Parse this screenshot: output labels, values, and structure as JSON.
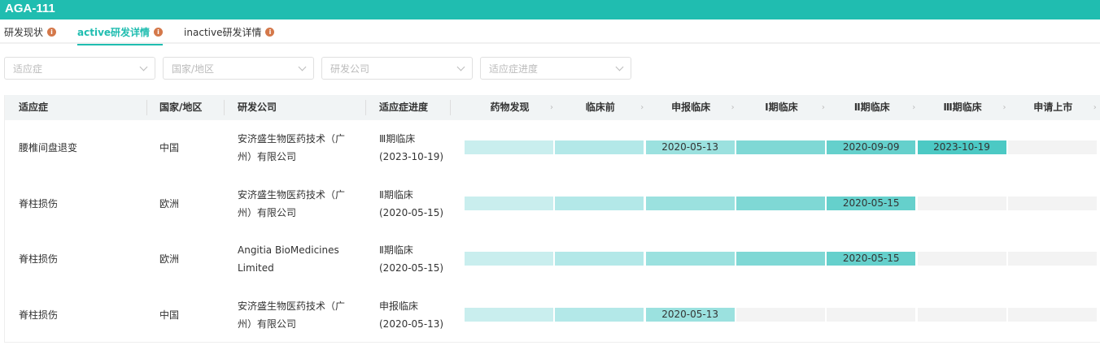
{
  "title": "AGA-111",
  "tabs": [
    {
      "label": "研发现状"
    },
    {
      "label": "active研发详情"
    },
    {
      "label": "inactive研发详情"
    }
  ],
  "filters": [
    {
      "placeholder": "适应症"
    },
    {
      "placeholder": "国家/地区"
    },
    {
      "placeholder": "研发公司"
    },
    {
      "placeholder": "适应症进度"
    }
  ],
  "columns": [
    "适应症",
    "国家/地区",
    "研发公司",
    "适应症进度"
  ],
  "stages": [
    "药物发现",
    "临床前",
    "申报临床",
    "Ⅰ期临床",
    "Ⅱ期临床",
    "Ⅲ期临床",
    "申请上市"
  ],
  "stage_colors": [
    "#c9eeee",
    "#b3e8e8",
    "#9be1df",
    "#7fd8d5",
    "#65d0cc",
    "#4cc9c4",
    "#f3f3f3"
  ],
  "rows": [
    {
      "indication": "腰椎间盘退变",
      "region": "中国",
      "company": "安济盛生物医药技术（广州）有限公司",
      "progress": "Ⅲ期临床",
      "progress_date": "(2023-10-19)",
      "reached": 6,
      "dates": [
        "",
        "",
        "2020-05-13",
        "",
        "2020-09-09",
        "2023-10-19",
        ""
      ]
    },
    {
      "indication": "脊柱损伤",
      "region": "欧洲",
      "company": "安济盛生物医药技术（广州）有限公司",
      "progress": "Ⅱ期临床",
      "progress_date": "(2020-05-15)",
      "reached": 5,
      "dates": [
        "",
        "",
        "",
        "",
        "2020-05-15",
        "",
        ""
      ]
    },
    {
      "indication": "脊柱损伤",
      "region": "欧洲",
      "company": "Angitia BioMedicines Limited",
      "progress": "Ⅱ期临床",
      "progress_date": "(2020-05-15)",
      "reached": 5,
      "dates": [
        "",
        "",
        "",
        "",
        "2020-05-15",
        "",
        ""
      ]
    },
    {
      "indication": "脊柱损伤",
      "region": "中国",
      "company": "安济盛生物医药技术（广州）有限公司",
      "progress": "申报临床",
      "progress_date": "(2020-05-13)",
      "reached": 3,
      "dates": [
        "",
        "",
        "2020-05-13",
        "",
        "",
        "",
        ""
      ]
    }
  ]
}
